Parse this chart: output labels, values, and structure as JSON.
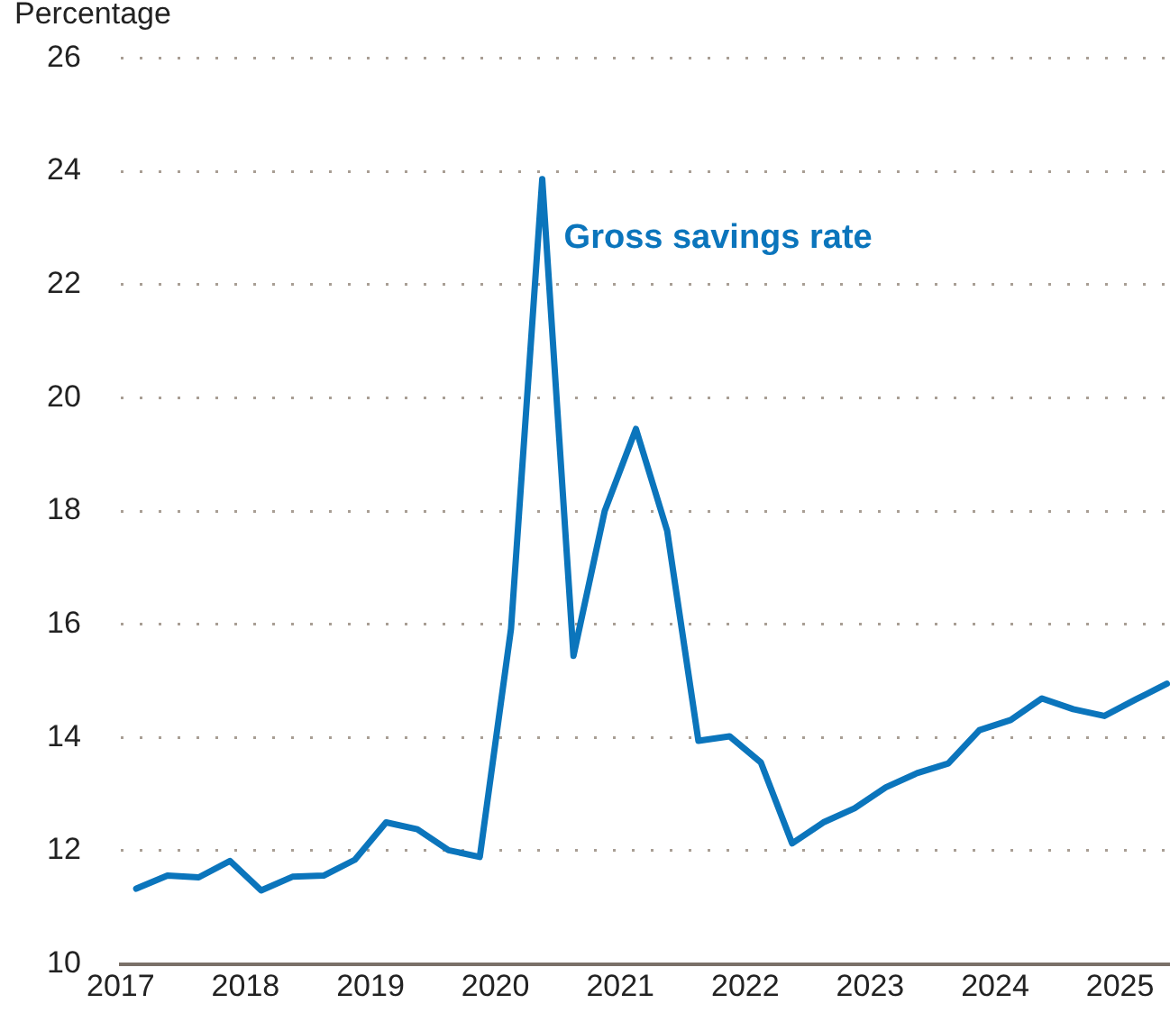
{
  "chart_data": {
    "type": "line",
    "ylabel": "Percentage",
    "x": [
      2017.125,
      2017.375,
      2017.625,
      2017.875,
      2018.125,
      2018.375,
      2018.625,
      2018.875,
      2019.125,
      2019.375,
      2019.625,
      2019.875,
      2020.125,
      2020.375,
      2020.625,
      2020.875,
      2021.125,
      2021.375,
      2021.625,
      2021.875,
      2022.125,
      2022.375,
      2022.625,
      2022.875,
      2023.125,
      2023.375,
      2023.625,
      2023.875,
      2024.125,
      2024.375,
      2024.625,
      2024.875,
      2025.125,
      2025.375
    ],
    "series": [
      {
        "name": "Gross savings rate",
        "color": "#0b75bc",
        "values": [
          11.33,
          11.56,
          11.53,
          11.82,
          11.3,
          11.54,
          11.56,
          11.84,
          12.5,
          12.38,
          12.01,
          11.89,
          15.92,
          23.86,
          15.44,
          18.0,
          19.45,
          17.65,
          13.94,
          14.02,
          13.56,
          12.13,
          12.5,
          12.75,
          13.12,
          13.37,
          13.54,
          14.13,
          14.31,
          14.69,
          14.5,
          14.38,
          14.67,
          14.95
        ]
      }
    ],
    "xlim": [
      2017,
      2025.4
    ],
    "xticks": [
      2017,
      2018,
      2019,
      2020,
      2021,
      2022,
      2023,
      2024,
      2025
    ],
    "ylim": [
      10,
      26
    ],
    "yticks": [
      10,
      12,
      14,
      16,
      18,
      20,
      22,
      24,
      26
    ],
    "grid": "y",
    "legend": false,
    "marker": "none",
    "line_style": "solid"
  }
}
